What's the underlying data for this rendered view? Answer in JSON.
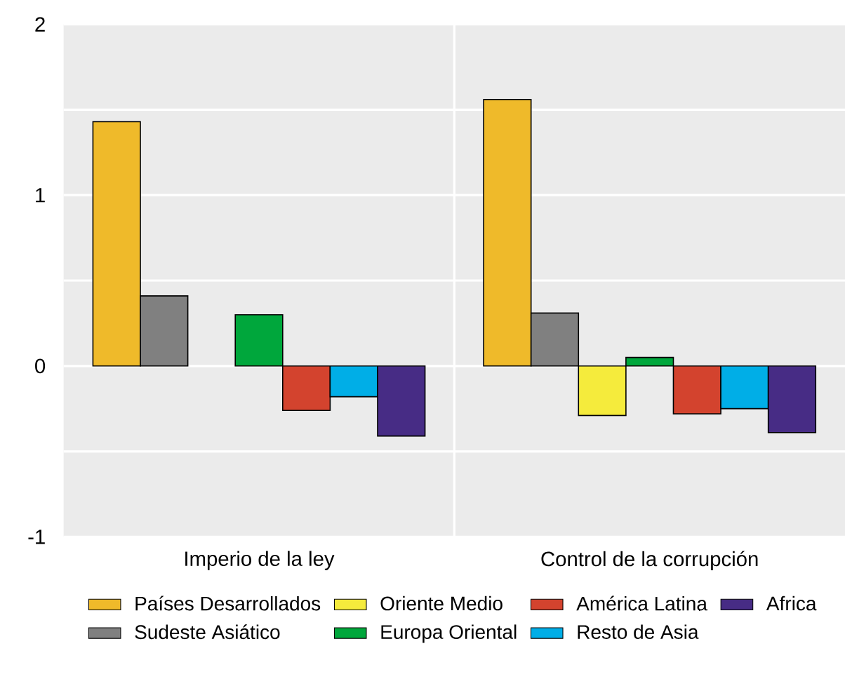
{
  "chart_data": {
    "type": "bar",
    "categories": [
      "Imperio de la ley",
      "Control de la corrupción"
    ],
    "series": [
      {
        "name": "Países Desarrollados",
        "color": "#efba2a",
        "values": [
          1.43,
          1.56
        ]
      },
      {
        "name": "Sudeste Asiático",
        "color": "#808080",
        "values": [
          0.41,
          0.31
        ]
      },
      {
        "name": "Oriente Medio",
        "color": "#f5eb3c",
        "values": [
          null,
          -0.29
        ]
      },
      {
        "name": "Europa Oriental",
        "color": "#00a73c",
        "values": [
          0.3,
          0.05
        ]
      },
      {
        "name": "América Latina",
        "color": "#d3432e",
        "values": [
          -0.26,
          -0.28
        ]
      },
      {
        "name": "Resto de Asia",
        "color": "#00aee7",
        "values": [
          -0.18,
          -0.25
        ]
      },
      {
        "name": "Africa",
        "color": "#472c85",
        "values": [
          -0.41,
          -0.39
        ]
      }
    ],
    "ylim": [
      -1,
      2
    ],
    "yticks": [
      -1,
      {
        "value": -0.5,
        "label": null
      },
      0,
      {
        "value": 0.5,
        "label": null
      },
      1,
      {
        "value": 1.5,
        "label": null
      },
      2
    ],
    "grid": true,
    "legend": "bottom"
  }
}
